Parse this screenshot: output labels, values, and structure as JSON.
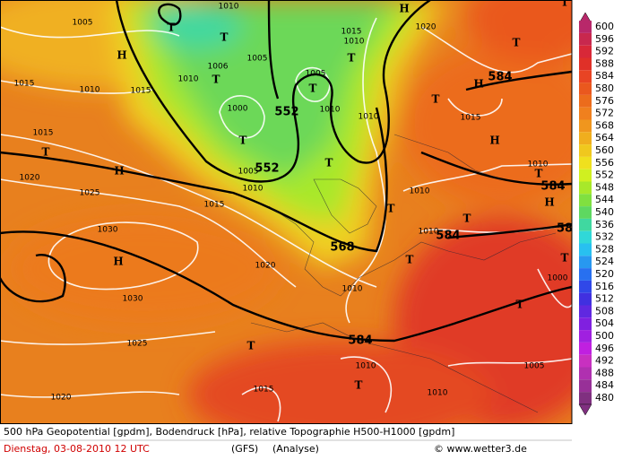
{
  "map": {
    "pressure_labels": [
      "1005",
      "1010",
      "1015",
      "1010",
      "1020",
      "1005",
      "1006",
      "1010",
      "1005",
      "1015",
      "1010",
      "1015",
      "1000",
      "1010",
      "1010",
      "1015",
      "1015",
      "1005",
      "1010",
      "1020",
      "1025",
      "1015",
      "1010",
      "1010",
      "1030",
      "1010",
      "1020",
      "1010",
      "1030",
      "1000",
      "1025",
      "1010",
      "1005",
      "1015",
      "1010",
      "1020"
    ],
    "height_labels": [
      "552",
      "552",
      "568",
      "584",
      "584",
      "584",
      "58",
      "584"
    ],
    "highs": [
      "H",
      "H",
      "H",
      "H",
      "H",
      "H",
      "H"
    ],
    "lows": [
      "T",
      "T",
      "T",
      "T",
      "T",
      "T",
      "T",
      "T",
      "T",
      "T",
      "T",
      "T",
      "T",
      "T",
      "T",
      "T",
      "T",
      "T",
      "T"
    ],
    "legend": {
      "labels": [
        600,
        596,
        592,
        588,
        584,
        580,
        576,
        572,
        568,
        564,
        560,
        556,
        552,
        548,
        544,
        540,
        536,
        532,
        528,
        524,
        520,
        516,
        512,
        508,
        504,
        500,
        496,
        492,
        488,
        484,
        480
      ],
      "colors": [
        "#b8286a",
        "#c8284e",
        "#d82838",
        "#e03028",
        "#e84424",
        "#ea581e",
        "#ec6c1c",
        "#f0801e",
        "#f0961e",
        "#f0ae1e",
        "#f0c81e",
        "#f0e01e",
        "#d0f020",
        "#a8e82a",
        "#80e040",
        "#5ed860",
        "#40d8a0",
        "#30d8d8",
        "#28c0f0",
        "#2898f0",
        "#2870f0",
        "#3048e8",
        "#4030e0",
        "#6028e0",
        "#8020e0",
        "#a020e0",
        "#c020e0",
        "#c830c0",
        "#b030b0",
        "#983098",
        "#803080"
      ]
    }
  },
  "footer": {
    "description": "500 hPa Geopotential [gpdm], Bodendruck [hPa], relative Topographie H500-H1000 [gpdm]",
    "date": "Dienstag, 03-08-2010   12 UTC",
    "model": "(GFS)",
    "run": "(Analyse)",
    "credit": "© www.wetter3.de"
  }
}
